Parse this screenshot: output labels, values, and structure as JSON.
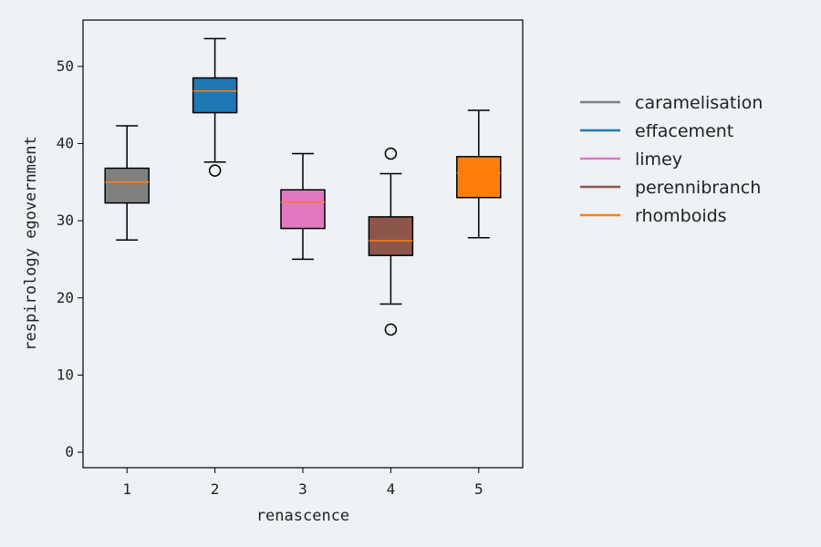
{
  "chart_data": {
    "type": "box",
    "xlabel": "renascence",
    "ylabel": "respirology egovernment",
    "ylim": [
      -2,
      56
    ],
    "yticks": [
      0,
      10,
      20,
      30,
      40,
      50
    ],
    "grid": false,
    "legend_position": "right",
    "median_color": "#ff7f0e",
    "series": [
      {
        "x": "1",
        "name": "caramelisation",
        "color": "#808080",
        "whisker_low": 27.5,
        "q1": 32.3,
        "median": 35.0,
        "q3": 36.8,
        "whisker_high": 42.3,
        "outliers": []
      },
      {
        "x": "2",
        "name": "effacement",
        "color": "#1f77b4",
        "whisker_low": 37.6,
        "q1": 44.0,
        "median": 46.8,
        "q3": 48.5,
        "whisker_high": 53.6,
        "outliers": [
          36.5
        ]
      },
      {
        "x": "3",
        "name": "limey",
        "color": "#e377c2",
        "whisker_low": 25.0,
        "q1": 29.0,
        "median": 32.4,
        "q3": 34.0,
        "whisker_high": 38.7,
        "outliers": []
      },
      {
        "x": "4",
        "name": "perennibranch",
        "color": "#8c564b",
        "whisker_low": 19.2,
        "q1": 25.5,
        "median": 27.4,
        "q3": 30.5,
        "whisker_high": 36.1,
        "outliers": [
          38.7,
          15.9
        ]
      },
      {
        "x": "5",
        "name": "rhomboids",
        "color": "#ff7f0e",
        "whisker_low": 27.8,
        "q1": 33.0,
        "median": 36.2,
        "q3": 38.3,
        "whisker_high": 44.3,
        "outliers": []
      }
    ]
  }
}
